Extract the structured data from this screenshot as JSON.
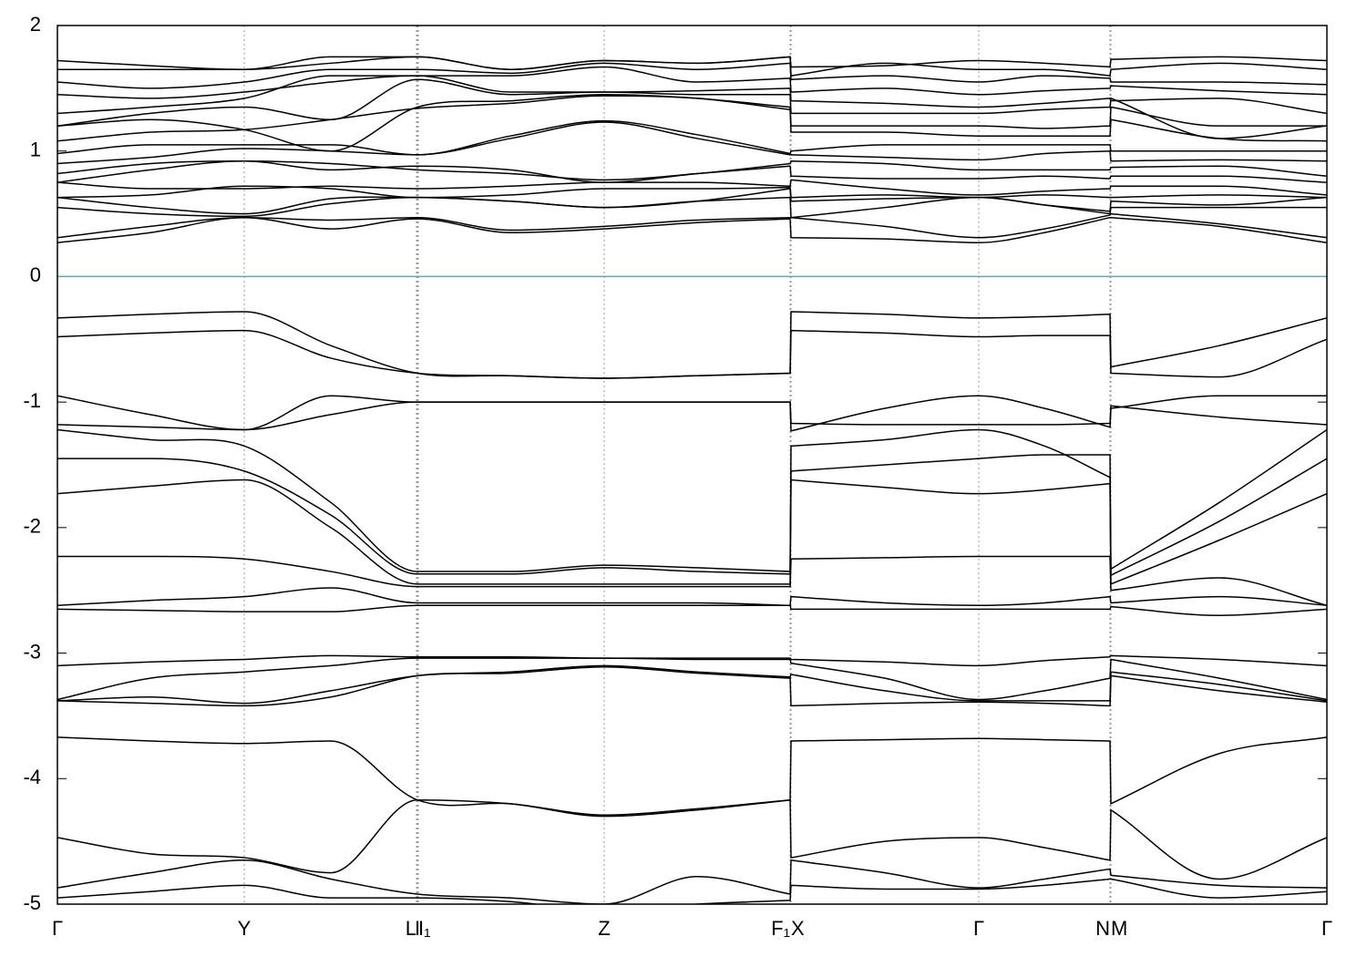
{
  "chart_data": {
    "type": "band-structure",
    "xlim": [
      0,
      13.93
    ],
    "ylim": [
      -5,
      2
    ],
    "yticks": [
      2,
      1,
      0,
      -1,
      -2,
      -3,
      -4,
      -5
    ],
    "xticks": [
      {
        "value": 0,
        "label": "Γ"
      },
      {
        "value": 2.05,
        "label": "Y"
      },
      {
        "value": 3.94,
        "label": "L"
      },
      {
        "value": 3.95,
        "label": "I"
      },
      {
        "value": 3.96,
        "label": "I₁"
      },
      {
        "value": 6.0,
        "label": "Z"
      },
      {
        "value": 8.04,
        "label": "F₁"
      },
      {
        "value": 8.05,
        "label": "X"
      },
      {
        "value": 10.11,
        "label": "Γ"
      },
      {
        "value": 11.55,
        "label": "N"
      },
      {
        "value": 11.56,
        "label": "M"
      },
      {
        "value": 13.93,
        "label": "Γ"
      }
    ],
    "grid": true,
    "line_color": "#000000",
    "fermi_level": 0,
    "fermi_color": "#4ab0c9",
    "x": [
      0,
      1.02,
      2.05,
      3.0,
      3.95,
      4.97,
      6.0,
      7.02,
      8.04,
      8.05,
      9.08,
      10.11,
      10.83,
      11.55,
      11.56,
      12.75,
      13.93
    ],
    "series": [
      {
        "values": [
          -0.33,
          -0.3,
          -0.28,
          -0.55,
          -0.77,
          -0.79,
          -0.81,
          -0.79,
          -0.77,
          -0.28,
          -0.3,
          -0.33,
          -0.32,
          -0.3,
          -0.72,
          -0.55,
          -0.33
        ]
      },
      {
        "values": [
          -0.48,
          -0.45,
          -0.43,
          -0.65,
          -0.77,
          -0.79,
          -0.81,
          -0.79,
          -0.77,
          -0.43,
          -0.45,
          -0.48,
          -0.47,
          -0.47,
          -0.77,
          -0.8,
          -0.5
        ]
      },
      {
        "values": [
          -0.95,
          -1.1,
          -1.22,
          -0.95,
          -1.0,
          -1.0,
          -1.0,
          -1.0,
          -1.0,
          -1.23,
          -1.05,
          -0.95,
          -1.05,
          -1.2,
          -1.05,
          -0.95,
          -0.95
        ]
      },
      {
        "values": [
          -1.18,
          -1.2,
          -1.22,
          -1.1,
          -1.0,
          -1.0,
          -1.0,
          -1.0,
          -1.0,
          -1.17,
          -1.18,
          -1.18,
          -1.18,
          -1.17,
          -1.03,
          -1.12,
          -1.18
        ]
      },
      {
        "values": [
          -1.22,
          -1.3,
          -1.35,
          -1.8,
          -2.35,
          -2.35,
          -2.3,
          -2.32,
          -2.35,
          -1.35,
          -1.3,
          -1.22,
          -1.35,
          -1.6,
          -2.33,
          -1.8,
          -1.22
        ]
      },
      {
        "values": [
          -1.45,
          -1.45,
          -1.55,
          -1.9,
          -2.37,
          -2.37,
          -2.32,
          -2.35,
          -2.37,
          -1.55,
          -1.5,
          -1.45,
          -1.42,
          -1.42,
          -2.38,
          -1.95,
          -1.45
        ]
      },
      {
        "values": [
          -1.73,
          -1.67,
          -1.62,
          -2.0,
          -2.45,
          -2.45,
          -2.45,
          -2.45,
          -2.45,
          -1.62,
          -1.68,
          -1.73,
          -1.7,
          -1.65,
          -2.45,
          -2.1,
          -1.73
        ]
      },
      {
        "values": [
          -2.23,
          -2.23,
          -2.25,
          -2.35,
          -2.47,
          -2.47,
          -2.47,
          -2.47,
          -2.47,
          -2.25,
          -2.24,
          -2.23,
          -2.23,
          -2.23,
          -2.5,
          -2.4,
          -2.62
        ]
      },
      {
        "values": [
          -2.62,
          -2.58,
          -2.55,
          -2.48,
          -2.6,
          -2.6,
          -2.6,
          -2.6,
          -2.62,
          -2.55,
          -2.6,
          -2.62,
          -2.6,
          -2.55,
          -2.6,
          -2.55,
          -2.62
        ]
      },
      {
        "values": [
          -2.65,
          -2.66,
          -2.67,
          -2.67,
          -2.62,
          -2.62,
          -2.62,
          -2.62,
          -2.62,
          -2.65,
          -2.65,
          -2.65,
          -2.65,
          -2.65,
          -2.63,
          -2.7,
          -2.65
        ]
      },
      {
        "values": [
          -3.1,
          -3.07,
          -3.05,
          -3.02,
          -3.03,
          -3.03,
          -3.04,
          -3.04,
          -3.04,
          -3.05,
          -3.07,
          -3.1,
          -3.06,
          -3.03,
          -3.02,
          -3.05,
          -3.1
        ]
      },
      {
        "values": [
          -3.37,
          -3.2,
          -3.15,
          -3.1,
          -3.04,
          -3.04,
          -3.04,
          -3.05,
          -3.05,
          -3.08,
          -3.2,
          -3.37,
          -3.3,
          -3.2,
          -3.05,
          -3.2,
          -3.37
        ]
      },
      {
        "values": [
          -3.38,
          -3.35,
          -3.4,
          -3.3,
          -3.18,
          -3.15,
          -3.1,
          -3.15,
          -3.19,
          -3.17,
          -3.3,
          -3.38,
          -3.38,
          -3.38,
          -3.15,
          -3.25,
          -3.38
        ]
      },
      {
        "values": [
          -3.38,
          -3.4,
          -3.42,
          -3.35,
          -3.18,
          -3.16,
          -3.11,
          -3.16,
          -3.2,
          -3.42,
          -3.4,
          -3.39,
          -3.4,
          -3.42,
          -3.18,
          -3.3,
          -3.39
        ]
      },
      {
        "values": [
          -3.67,
          -3.7,
          -3.72,
          -3.7,
          -4.17,
          -4.2,
          -4.3,
          -4.25,
          -4.17,
          -3.7,
          -3.69,
          -3.68,
          -3.69,
          -3.7,
          -4.2,
          -3.8,
          -3.67
        ]
      },
      {
        "values": [
          -4.47,
          -4.6,
          -4.63,
          -4.75,
          -4.17,
          -4.2,
          -4.29,
          -4.24,
          -4.17,
          -4.63,
          -4.5,
          -4.47,
          -4.55,
          -4.65,
          -4.25,
          -4.8,
          -4.47
        ]
      },
      {
        "values": [
          -4.87,
          -4.75,
          -4.65,
          -4.8,
          -4.92,
          -4.95,
          -5.0,
          -4.78,
          -4.92,
          -4.65,
          -4.75,
          -4.87,
          -4.8,
          -4.72,
          -4.77,
          -4.85,
          -4.87
        ]
      },
      {
        "values": [
          -4.95,
          -4.9,
          -4.85,
          -4.95,
          -4.95,
          -4.98,
          -5.05,
          -5.0,
          -4.97,
          -4.85,
          -4.88,
          -4.88,
          -4.85,
          -4.8,
          -4.8,
          -4.95,
          -4.9
        ]
      },
      {
        "values": [
          0.27,
          0.35,
          0.47,
          0.38,
          0.46,
          0.35,
          0.38,
          0.43,
          0.46,
          0.31,
          0.3,
          0.27,
          0.35,
          0.47,
          0.47,
          0.4,
          0.27
        ]
      },
      {
        "values": [
          0.31,
          0.4,
          0.47,
          0.45,
          0.47,
          0.37,
          0.4,
          0.45,
          0.47,
          0.47,
          0.4,
          0.31,
          0.38,
          0.49,
          0.5,
          0.42,
          0.31
        ]
      },
      {
        "values": [
          0.55,
          0.5,
          0.48,
          0.58,
          0.63,
          0.6,
          0.55,
          0.6,
          0.63,
          0.47,
          0.55,
          0.63,
          0.57,
          0.5,
          0.55,
          0.55,
          0.55
        ]
      },
      {
        "values": [
          0.63,
          0.55,
          0.5,
          0.62,
          0.63,
          0.6,
          0.55,
          0.6,
          0.7,
          0.6,
          0.62,
          0.63,
          0.57,
          0.52,
          0.6,
          0.57,
          0.63
        ]
      },
      {
        "values": [
          0.63,
          0.65,
          0.72,
          0.7,
          0.63,
          0.65,
          0.7,
          0.7,
          0.71,
          0.63,
          0.65,
          0.63,
          0.65,
          0.63,
          0.63,
          0.65,
          0.63
        ]
      },
      {
        "values": [
          0.75,
          0.7,
          0.7,
          0.72,
          0.7,
          0.72,
          0.75,
          0.75,
          0.72,
          0.77,
          0.7,
          0.65,
          0.68,
          0.7,
          0.72,
          0.72,
          0.65
        ]
      },
      {
        "values": [
          0.75,
          0.85,
          0.92,
          0.85,
          0.88,
          0.85,
          0.75,
          0.82,
          0.88,
          0.8,
          0.78,
          0.78,
          0.8,
          0.78,
          0.8,
          0.8,
          0.75
        ]
      },
      {
        "values": [
          0.82,
          0.9,
          0.92,
          0.9,
          0.85,
          0.82,
          0.77,
          0.82,
          0.9,
          0.92,
          0.9,
          0.85,
          0.85,
          0.85,
          0.87,
          0.88,
          0.8
        ]
      },
      {
        "values": [
          0.9,
          0.95,
          1.02,
          1.0,
          0.97,
          1.1,
          1.23,
          1.1,
          0.97,
          0.97,
          0.95,
          0.93,
          0.98,
          1.0,
          0.92,
          0.93,
          0.92
        ]
      },
      {
        "values": [
          0.98,
          1.05,
          1.05,
          1.05,
          0.97,
          1.12,
          1.24,
          1.13,
          0.98,
          1.0,
          1.05,
          1.05,
          1.05,
          1.05,
          1.0,
          1.0,
          1.0
        ]
      },
      {
        "values": [
          1.08,
          1.15,
          1.17,
          1.25,
          1.34,
          1.38,
          1.44,
          1.42,
          1.33,
          1.15,
          1.15,
          1.12,
          1.12,
          1.12,
          1.25,
          1.1,
          1.08
        ]
      },
      {
        "values": [
          1.2,
          1.25,
          1.17,
          1.0,
          1.35,
          1.4,
          1.45,
          1.42,
          1.35,
          1.2,
          1.2,
          1.2,
          1.18,
          1.2,
          1.35,
          1.2,
          1.2
        ]
      },
      {
        "values": [
          1.2,
          1.3,
          1.35,
          1.25,
          1.57,
          1.45,
          1.47,
          1.45,
          1.45,
          1.3,
          1.3,
          1.3,
          1.33,
          1.35,
          1.42,
          1.1,
          1.2
        ]
      },
      {
        "values": [
          1.3,
          1.35,
          1.42,
          1.6,
          1.6,
          1.47,
          1.47,
          1.48,
          1.5,
          1.4,
          1.38,
          1.35,
          1.38,
          1.42,
          1.4,
          1.42,
          1.3
        ]
      },
      {
        "values": [
          1.45,
          1.42,
          1.47,
          1.55,
          1.6,
          1.6,
          1.67,
          1.55,
          1.58,
          1.47,
          1.5,
          1.45,
          1.48,
          1.5,
          1.52,
          1.48,
          1.45
        ]
      },
      {
        "values": [
          1.55,
          1.5,
          1.55,
          1.65,
          1.65,
          1.62,
          1.7,
          1.65,
          1.7,
          1.57,
          1.6,
          1.55,
          1.6,
          1.58,
          1.55,
          1.55,
          1.53
        ]
      },
      {
        "values": [
          1.65,
          1.65,
          1.65,
          1.7,
          1.75,
          1.65,
          1.72,
          1.7,
          1.75,
          1.6,
          1.7,
          1.65,
          1.65,
          1.6,
          1.65,
          1.7,
          1.65
        ]
      },
      {
        "values": [
          1.72,
          1.68,
          1.65,
          1.75,
          1.75,
          1.65,
          1.72,
          1.7,
          1.75,
          1.67,
          1.68,
          1.72,
          1.7,
          1.67,
          1.73,
          1.75,
          1.72
        ]
      }
    ]
  }
}
